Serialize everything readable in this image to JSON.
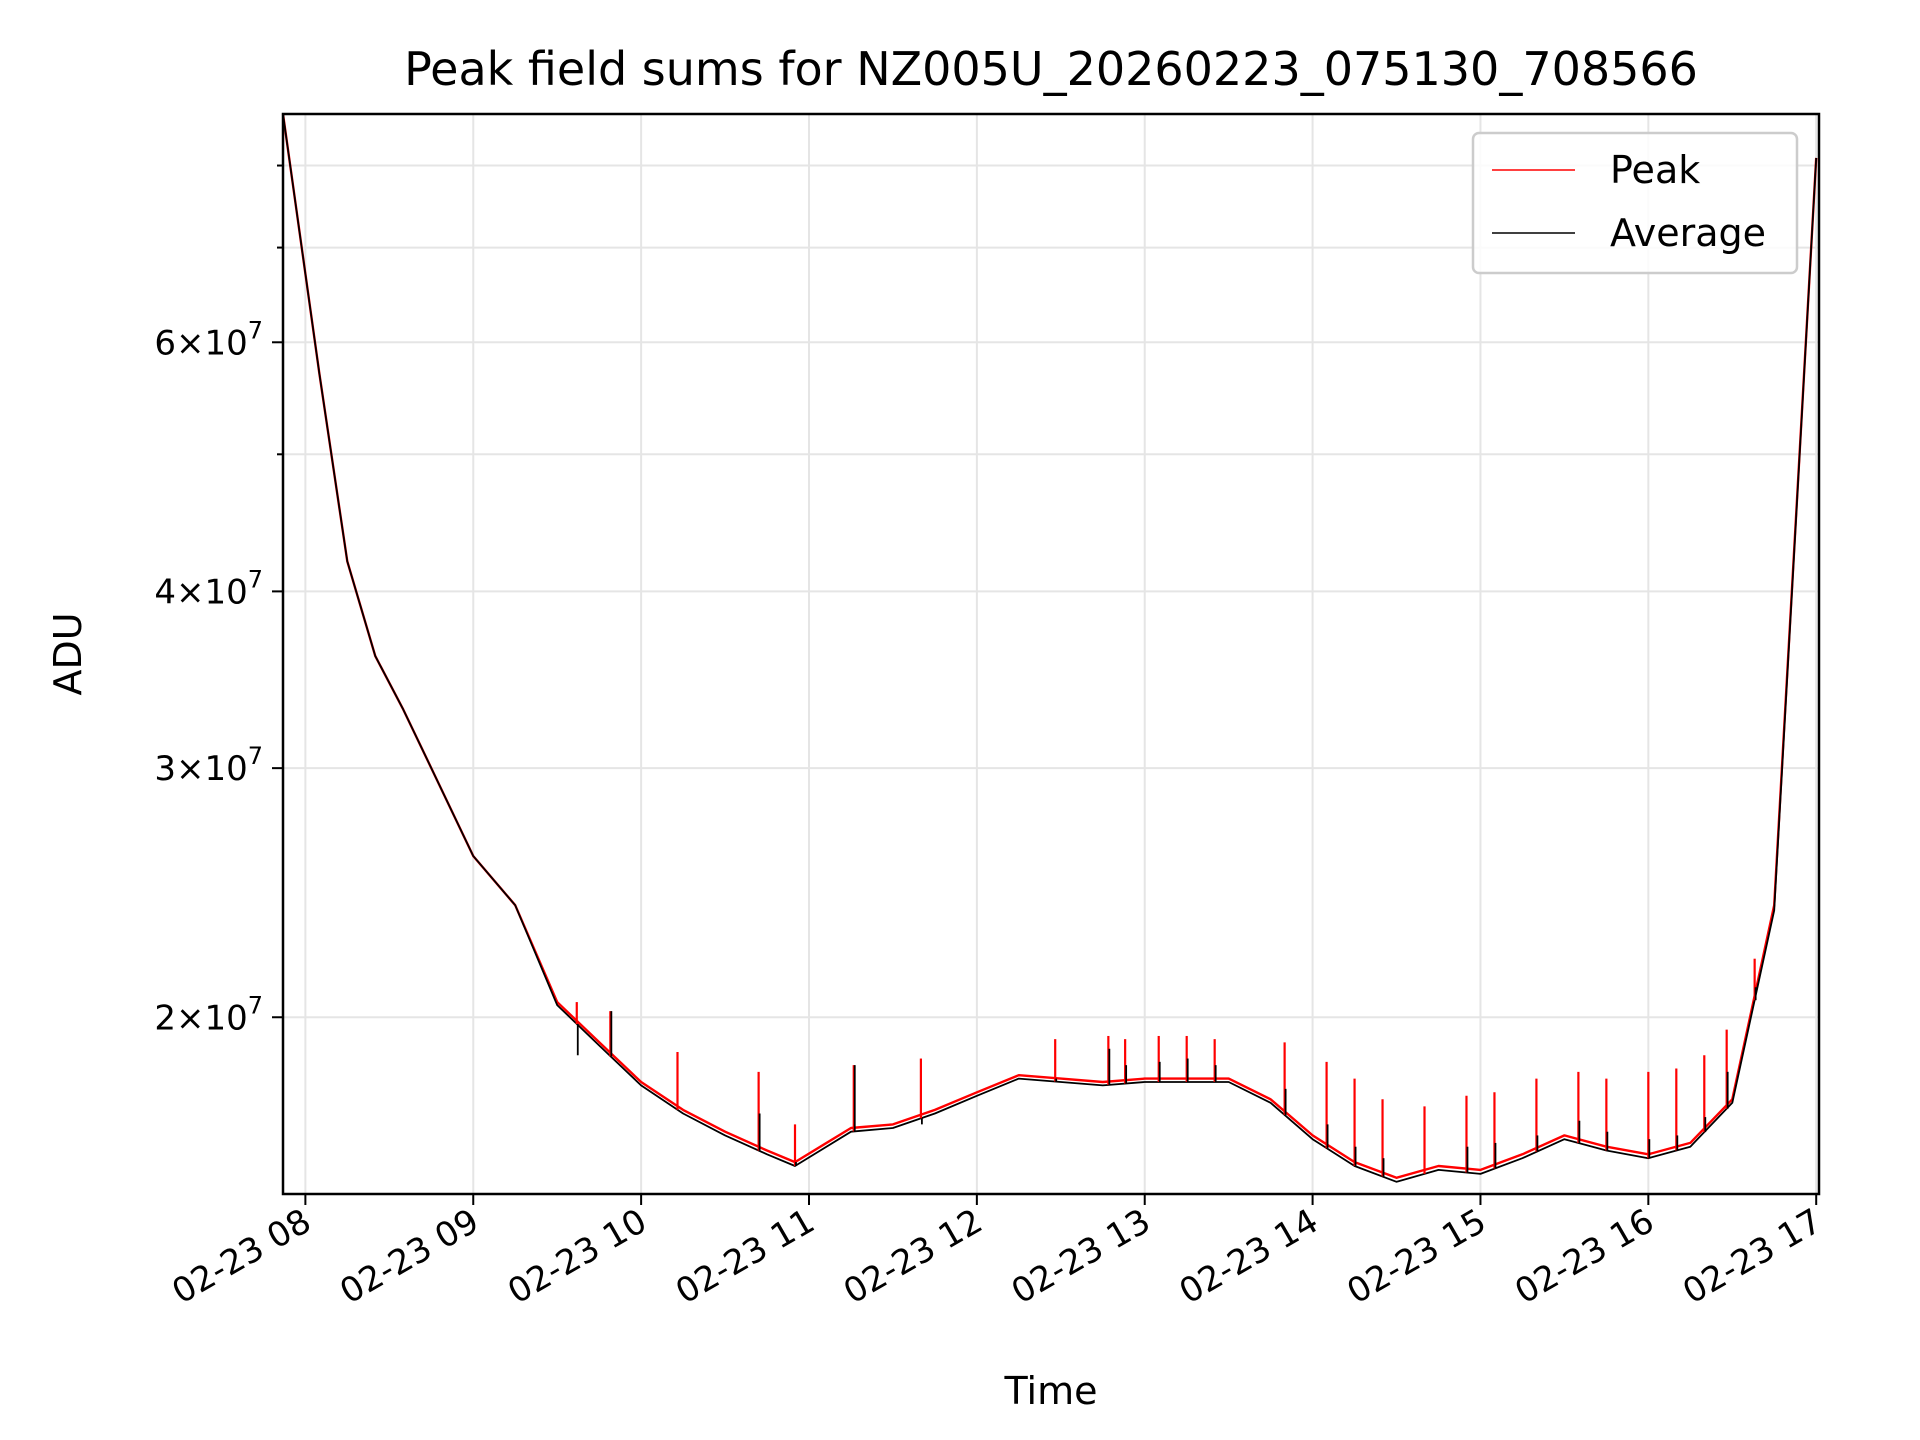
{
  "chart_data": {
    "type": "line",
    "title": "Peak field sums for NZ005U_20260223_075130_708566",
    "xlabel": "Time",
    "ylabel": "ADU",
    "y_scale": "log",
    "grid": true,
    "legend_position": "top-right",
    "xlim": [
      "02-23 07:52",
      "02-23 17:01"
    ],
    "ylim": [
      15000000,
      87000000
    ],
    "x_ticks": [
      "02-23 08",
      "02-23 09",
      "02-23 10",
      "02-23 11",
      "02-23 12",
      "02-23 13",
      "02-23 14",
      "02-23 15",
      "02-23 16",
      "02-23 17"
    ],
    "y_ticks": [
      {
        "value": 20000000,
        "base": "2",
        "exp": "7"
      },
      {
        "value": 30000000,
        "base": "3",
        "exp": "7"
      },
      {
        "value": 40000000,
        "base": "4",
        "exp": "7"
      },
      {
        "value": 60000000,
        "base": "6",
        "exp": "7"
      }
    ],
    "series": [
      {
        "name": "Peak",
        "color": "#ff0000",
        "x": [
          "02-23 07:52",
          "02-23 08:05",
          "02-23 08:15",
          "02-23 08:25",
          "02-23 08:35",
          "02-23 08:45",
          "02-23 09:00",
          "02-23 09:15",
          "02-23 09:30",
          "02-23 09:45",
          "02-23 10:00",
          "02-23 10:15",
          "02-23 10:30",
          "02-23 10:45",
          "02-23 10:55",
          "02-23 11:15",
          "02-23 11:30",
          "02-23 11:45",
          "02-23 12:00",
          "02-23 12:15",
          "02-23 12:30",
          "02-23 12:45",
          "02-23 13:00",
          "02-23 13:15",
          "02-23 13:30",
          "02-23 13:45",
          "02-23 14:00",
          "02-23 14:15",
          "02-23 14:30",
          "02-23 14:45",
          "02-23 15:00",
          "02-23 15:15",
          "02-23 15:30",
          "02-23 15:45",
          "02-23 16:00",
          "02-23 16:15",
          "02-23 16:30",
          "02-23 16:45",
          "02-23 17:00"
        ],
        "values": [
          87000000,
          57000000,
          42000000,
          36000000,
          33000000,
          30000000,
          26000000,
          24000000,
          20500000,
          19200000,
          18000000,
          17200000,
          16600000,
          16100000,
          15800000,
          16700000,
          16800000,
          17200000,
          17700000,
          18200000,
          18100000,
          18000000,
          18100000,
          18100000,
          18100000,
          17500000,
          16500000,
          15800000,
          15400000,
          15700000,
          15600000,
          16000000,
          16500000,
          16200000,
          16000000,
          16300000,
          17500000,
          24000000,
          81000000
        ]
      },
      {
        "name": "Average",
        "color": "#000000",
        "x": [
          "02-23 07:52",
          "02-23 08:05",
          "02-23 08:15",
          "02-23 08:25",
          "02-23 08:35",
          "02-23 08:45",
          "02-23 09:00",
          "02-23 09:15",
          "02-23 09:30",
          "02-23 09:45",
          "02-23 10:00",
          "02-23 10:15",
          "02-23 10:30",
          "02-23 10:45",
          "02-23 10:55",
          "02-23 11:15",
          "02-23 11:30",
          "02-23 11:45",
          "02-23 12:00",
          "02-23 12:15",
          "02-23 12:30",
          "02-23 12:45",
          "02-23 13:00",
          "02-23 13:15",
          "02-23 13:30",
          "02-23 13:45",
          "02-23 14:00",
          "02-23 14:15",
          "02-23 14:30",
          "02-23 14:45",
          "02-23 15:00",
          "02-23 15:15",
          "02-23 15:30",
          "02-23 15:45",
          "02-23 16:00",
          "02-23 16:15",
          "02-23 16:30",
          "02-23 16:45",
          "02-23 17:00"
        ],
        "values": [
          87000000,
          57000000,
          42000000,
          36000000,
          33000000,
          30000000,
          26000000,
          24000000,
          20400000,
          19100000,
          17900000,
          17100000,
          16500000,
          16000000,
          15700000,
          16600000,
          16700000,
          17100000,
          17600000,
          18100000,
          18000000,
          17900000,
          18000000,
          18000000,
          18000000,
          17400000,
          16400000,
          15700000,
          15300000,
          15600000,
          15500000,
          15900000,
          16400000,
          16100000,
          15900000,
          16200000,
          17400000,
          23800000,
          81000000
        ]
      }
    ],
    "spikes": [
      {
        "x": "02-23 09:37",
        "peak": 20500000,
        "avg": 18800000
      },
      {
        "x": "02-23 09:49",
        "peak": 20200000,
        "avg": 20200000
      },
      {
        "x": "02-23 10:13",
        "peak": 18900000,
        "avg": 17200000
      },
      {
        "x": "02-23 10:42",
        "peak": 18300000,
        "avg": 17100000
      },
      {
        "x": "02-23 10:55",
        "peak": 16800000,
        "avg": 15800000
      },
      {
        "x": "02-23 11:16",
        "peak": 18500000,
        "avg": 18500000
      },
      {
        "x": "02-23 11:40",
        "peak": 18700000,
        "avg": 16800000
      },
      {
        "x": "02-23 12:28",
        "peak": 19300000,
        "avg": 18100000
      },
      {
        "x": "02-23 12:47",
        "peak": 19400000,
        "avg": 19000000
      },
      {
        "x": "02-23 12:53",
        "peak": 19300000,
        "avg": 18500000
      },
      {
        "x": "02-23 13:05",
        "peak": 19400000,
        "avg": 18600000
      },
      {
        "x": "02-23 13:15",
        "peak": 19400000,
        "avg": 18700000
      },
      {
        "x": "02-23 13:25",
        "peak": 19300000,
        "avg": 18500000
      },
      {
        "x": "02-23 13:50",
        "peak": 19200000,
        "avg": 17800000
      },
      {
        "x": "02-23 14:05",
        "peak": 18600000,
        "avg": 16800000
      },
      {
        "x": "02-23 14:15",
        "peak": 18100000,
        "avg": 16200000
      },
      {
        "x": "02-23 14:25",
        "peak": 17500000,
        "avg": 15900000
      },
      {
        "x": "02-23 14:40",
        "peak": 17300000,
        "avg": 15500000
      },
      {
        "x": "02-23 14:55",
        "peak": 17600000,
        "avg": 16200000
      },
      {
        "x": "02-23 15:05",
        "peak": 17700000,
        "avg": 16300000
      },
      {
        "x": "02-23 15:20",
        "peak": 18100000,
        "avg": 16500000
      },
      {
        "x": "02-23 15:35",
        "peak": 18300000,
        "avg": 16900000
      },
      {
        "x": "02-23 15:45",
        "peak": 18100000,
        "avg": 16600000
      },
      {
        "x": "02-23 16:00",
        "peak": 18300000,
        "avg": 16400000
      },
      {
        "x": "02-23 16:10",
        "peak": 18400000,
        "avg": 16500000
      },
      {
        "x": "02-23 16:20",
        "peak": 18800000,
        "avg": 17000000
      },
      {
        "x": "02-23 16:28",
        "peak": 19600000,
        "avg": 18300000
      },
      {
        "x": "02-23 16:38",
        "peak": 22000000,
        "avg": 21000000
      }
    ]
  }
}
